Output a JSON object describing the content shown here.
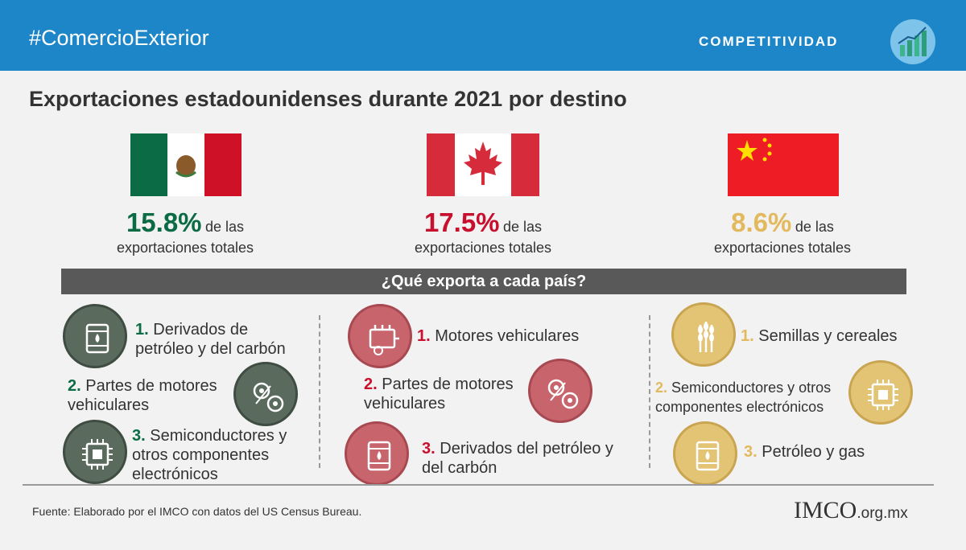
{
  "header": {
    "hashtag": "#ComercioExterior",
    "section": "COMPETITIVIDAD",
    "logo_icon": "bar-chart-logo-icon"
  },
  "title": "Exportaciones estadounidenses durante 2021 por destino",
  "countries": [
    {
      "flag_icon": "mexico-flag-icon",
      "percent": "15.8%",
      "suffix": "de las",
      "line2": "exportaciones totales",
      "color": "#0a6b45"
    },
    {
      "flag_icon": "canada-flag-icon",
      "percent": "17.5%",
      "suffix": "de las",
      "line2": "exportaciones totales",
      "color": "#c8102e"
    },
    {
      "flag_icon": "china-flag-icon",
      "percent": "8.6%",
      "suffix": "de las",
      "line2": "exportaciones totales",
      "color": "#e3b95e"
    }
  ],
  "question": "¿Qué exporta a cada país?",
  "mexico_items": [
    {
      "num": "1.",
      "line1": "Derivados de",
      "line2": "petróleo y del carbón",
      "icon": "oil-barrel-icon"
    },
    {
      "num": "2.",
      "line1": "Partes de motores",
      "line2": "vehiculares",
      "icon": "gears-icon"
    },
    {
      "num": "3.",
      "line1": "Semiconductores y",
      "line2": "otros componentes",
      "line3": "electrónicos",
      "icon": "chip-icon"
    }
  ],
  "canada_items": [
    {
      "num": "1.",
      "line1": "Motores vehiculares",
      "icon": "engine-icon"
    },
    {
      "num": "2.",
      "line1": "Partes de motores",
      "line2": "vehiculares",
      "icon": "gears-icon"
    },
    {
      "num": "3.",
      "line1": "Derivados del petróleo y",
      "line2": "del carbón",
      "icon": "oil-barrel-icon"
    }
  ],
  "china_items": [
    {
      "num": "1.",
      "line1": "Semillas y cereales",
      "icon": "wheat-icon"
    },
    {
      "num": "2.",
      "line1": "Semiconductores y otros",
      "line2": "componentes electrónicos",
      "icon": "chip-icon"
    },
    {
      "num": "3.",
      "line1": "Petróleo y gas",
      "icon": "oil-barrel-icon"
    }
  ],
  "colors": {
    "header": "#1d86c8",
    "mexico": "#5a6b5e",
    "canada": "#c8646c",
    "china": "#e3c374"
  },
  "footer": {
    "source": "Fuente: Elaborado por el IMCO con datos del US Census Bureau.",
    "brand": "IMCO",
    "domain": ".org.mx"
  }
}
